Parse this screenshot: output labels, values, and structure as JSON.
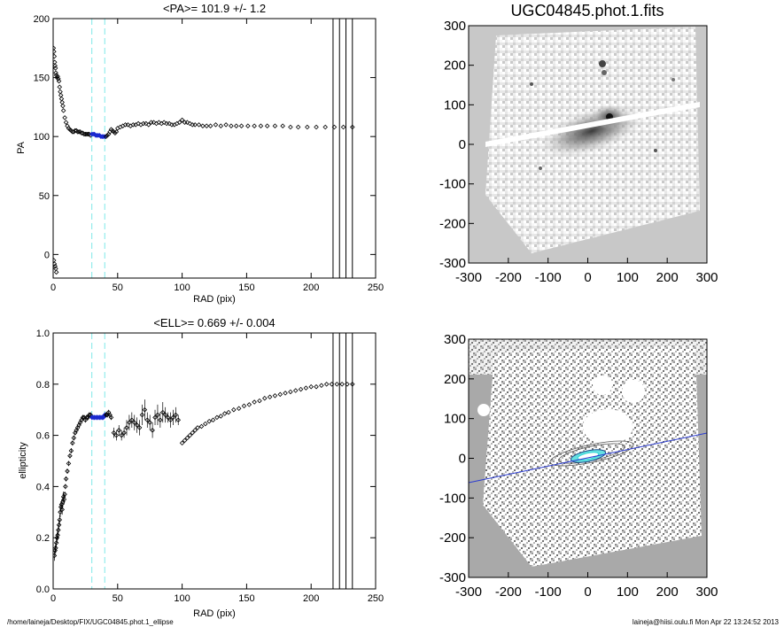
{
  "page": {
    "footer_left": "/home/laineja/Desktop/FIX/UGC04845.phot.1_ellipse",
    "footer_right": "laineja@hiisi.oulu.fi  Mon Apr 22 13:24:52 2013"
  },
  "images": {
    "top_title": "UGC04845.phot.1.fits",
    "axis_ticks": [
      "-300",
      "-200",
      "-100",
      "0",
      "100",
      "200",
      "300"
    ],
    "colors": {
      "background": "#c8c8c8",
      "overlay_line": "#2a3bd0",
      "ellipse": "#2ad6d6"
    }
  },
  "chart_data": [
    {
      "type": "scatter",
      "title": "<PA>= 101.9 +/-   1.2",
      "xlabel": "RAD (pix)",
      "ylabel": "PA",
      "xlim": [
        0,
        250
      ],
      "ylim": [
        -20,
        200
      ],
      "xticks": [
        0,
        50,
        100,
        150,
        200,
        250
      ],
      "yticks": [
        0,
        50,
        100,
        150,
        200
      ],
      "marker": "diamond-open",
      "dashed_vlines": [
        30,
        40
      ],
      "solid_vlines": [
        217,
        222,
        227,
        232
      ],
      "highlight_color": "#1a2ad0",
      "guide_color": "#7fe8e8",
      "series": [
        {
          "x": [
            0.3,
            0.6,
            0.9,
            1.2,
            1.5,
            1.8,
            2.1,
            2.5,
            3,
            3.5,
            4,
            4.5,
            5,
            5.5,
            6,
            6.5,
            7,
            7.5,
            8,
            9,
            10,
            11,
            12,
            13,
            14,
            15,
            16,
            17,
            18,
            19,
            20,
            21,
            22,
            23,
            24,
            25,
            26,
            27,
            28,
            29,
            30,
            31,
            32,
            33,
            34,
            35,
            36,
            37,
            38,
            39,
            40,
            41,
            42,
            43,
            44,
            45,
            46,
            47,
            48,
            49,
            50,
            52,
            54,
            56,
            58,
            60,
            62,
            64,
            66,
            68,
            70,
            72,
            74,
            76,
            78,
            80,
            82,
            84,
            86,
            88,
            90,
            92,
            94,
            96,
            98,
            100,
            102,
            104,
            106,
            108,
            110,
            113,
            116,
            119,
            122,
            126,
            130,
            134,
            138,
            142,
            146,
            151,
            156,
            161,
            166,
            172,
            178,
            184,
            190,
            197,
            204,
            211,
            218,
            225,
            232
          ],
          "y": [
            175,
            172,
            168,
            163,
            160,
            158,
            154,
            152,
            150,
            151,
            149,
            147,
            142,
            138,
            135,
            132,
            129,
            126,
            122,
            116,
            112,
            109,
            107,
            106,
            105,
            104,
            104,
            105,
            105,
            104,
            104,
            104,
            103,
            103,
            102,
            102,
            102,
            102,
            102,
            101,
            102,
            102,
            102,
            101,
            101,
            101,
            101,
            100,
            100,
            100,
            100,
            100,
            101,
            102,
            104,
            106,
            105,
            104,
            103,
            104,
            107,
            108,
            109,
            110,
            110,
            109,
            110,
            110,
            111,
            110,
            111,
            111,
            110,
            112,
            112,
            111,
            112,
            111,
            112,
            111,
            111,
            110,
            110,
            111,
            112,
            114,
            112,
            112,
            111,
            110,
            110,
            110,
            109,
            109,
            109,
            110,
            109,
            110,
            109,
            109,
            109,
            109,
            109,
            109,
            109,
            109,
            109,
            108,
            108,
            108,
            108,
            108,
            108,
            108,
            108
          ]
        },
        {
          "name": "",
          "x": [
            0.5,
            1,
            1.5,
            2,
            2.5
          ],
          "y": [
            -5,
            -8,
            -10,
            -12,
            -15
          ]
        }
      ],
      "highlight_range": [
        30,
        40
      ]
    },
    {
      "type": "scatter",
      "title": "<ELL>= 0.669 +/-  0.004",
      "xlabel": "RAD (pix)",
      "ylabel": "ellipticity",
      "xlim": [
        0,
        250
      ],
      "ylim": [
        0,
        1.0
      ],
      "xticks": [
        0,
        50,
        100,
        150,
        200,
        250
      ],
      "yticks": [
        0.0,
        0.2,
        0.4,
        0.6,
        0.8,
        1.0
      ],
      "ytick_labels": [
        "0.0",
        "0.2",
        "0.4",
        "0.6",
        "0.8",
        "1.0"
      ],
      "marker": "diamond-open",
      "dashed_vlines": [
        30,
        40
      ],
      "solid_vlines": [
        217,
        222,
        227,
        232
      ],
      "series": [
        {
          "x": [
            1,
            1.5,
            2,
            2.5,
            3,
            3.5,
            4,
            4.5,
            5,
            5.5,
            6,
            6.5,
            7,
            7.5,
            8,
            8.5,
            9,
            9.5,
            10,
            11,
            12,
            13,
            14,
            15,
            16,
            17,
            18,
            19,
            20,
            21,
            22,
            23,
            24,
            25,
            26,
            27,
            28,
            29,
            30,
            31,
            32,
            33,
            34,
            35,
            36,
            37,
            38,
            39,
            40,
            41,
            42,
            43,
            44,
            45,
            47,
            49,
            51,
            53,
            55,
            57,
            59,
            61,
            63,
            65,
            67,
            69,
            71,
            73,
            75,
            77,
            79,
            81,
            83,
            85,
            87,
            89,
            91,
            93,
            95,
            97
          ],
          "y": [
            0.13,
            0.15,
            0.16,
            0.18,
            0.2,
            0.21,
            0.23,
            0.25,
            0.27,
            0.3,
            0.32,
            0.33,
            0.31,
            0.34,
            0.36,
            0.35,
            0.37,
            0.4,
            0.43,
            0.46,
            0.49,
            0.52,
            0.54,
            0.57,
            0.59,
            0.61,
            0.62,
            0.63,
            0.64,
            0.65,
            0.66,
            0.67,
            0.67,
            0.66,
            0.67,
            0.67,
            0.68,
            0.68,
            0.67,
            0.67,
            0.67,
            0.67,
            0.67,
            0.67,
            0.67,
            0.67,
            0.67,
            0.67,
            0.68,
            0.68,
            0.68,
            0.69,
            0.68,
            0.67,
            0.61,
            0.6,
            0.62,
            0.6,
            0.61,
            0.63,
            0.65,
            0.66,
            0.65,
            0.64,
            0.63,
            0.68,
            0.7,
            0.66,
            0.65,
            0.62,
            0.67,
            0.68,
            0.66,
            0.69,
            0.68,
            0.67,
            0.66,
            0.67,
            0.68,
            0.66
          ],
          "err": [
            0.02,
            0.02,
            0.02,
            0.02,
            0.02,
            0.02,
            0.02,
            0.02,
            0.02,
            0.02,
            0.02,
            0.02,
            0.02,
            0.02,
            0.02,
            0.02,
            0.01,
            0.01,
            0.01,
            0.01,
            0.01,
            0.01,
            0.01,
            0.01,
            0.01,
            0.01,
            0.01,
            0.01,
            0.01,
            0.01,
            0.01,
            0.01,
            0.01,
            0.01,
            0.01,
            0.01,
            0.01,
            0.01,
            0.01,
            0.01,
            0.01,
            0.01,
            0.01,
            0.01,
            0.01,
            0.01,
            0.01,
            0.01,
            0.01,
            0.01,
            0.01,
            0.01,
            0.01,
            0.01,
            0.02,
            0.02,
            0.02,
            0.02,
            0.02,
            0.03,
            0.03,
            0.03,
            0.03,
            0.03,
            0.03,
            0.04,
            0.04,
            0.03,
            0.03,
            0.03,
            0.03,
            0.04,
            0.03,
            0.04,
            0.03,
            0.02,
            0.03,
            0.03,
            0.03,
            0.02
          ]
        },
        {
          "name": "",
          "x": [
            100,
            102,
            104,
            106,
            108,
            110,
            112,
            115,
            118,
            121,
            124,
            127,
            130,
            133,
            136,
            140,
            144,
            148,
            152,
            156,
            160,
            164,
            168,
            172,
            176,
            180,
            184,
            188,
            192,
            196,
            200,
            204,
            208,
            212,
            216,
            220,
            224,
            228,
            232
          ],
          "y": [
            0.57,
            0.58,
            0.59,
            0.6,
            0.61,
            0.62,
            0.63,
            0.635,
            0.645,
            0.655,
            0.66,
            0.67,
            0.675,
            0.685,
            0.69,
            0.7,
            0.705,
            0.715,
            0.72,
            0.73,
            0.735,
            0.745,
            0.75,
            0.755,
            0.76,
            0.765,
            0.77,
            0.775,
            0.78,
            0.785,
            0.79,
            0.79,
            0.795,
            0.8,
            0.8,
            0.8,
            0.8,
            0.8,
            0.8
          ]
        }
      ],
      "highlight_range": [
        30,
        40
      ]
    }
  ]
}
